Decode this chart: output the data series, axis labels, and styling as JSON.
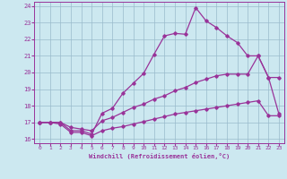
{
  "xlabel": "Windchill (Refroidissement éolien,°C)",
  "bg_color": "#cce8f0",
  "line_color": "#993399",
  "grid_color": "#99bbcc",
  "xlim": [
    -0.5,
    23.5
  ],
  "ylim": [
    15.75,
    24.25
  ],
  "yticks": [
    16,
    17,
    18,
    19,
    20,
    21,
    22,
    23,
    24
  ],
  "xticks": [
    0,
    1,
    2,
    3,
    4,
    5,
    6,
    7,
    8,
    9,
    10,
    11,
    12,
    13,
    14,
    15,
    16,
    17,
    18,
    19,
    20,
    21,
    22,
    23
  ],
  "line1_x": [
    0,
    1,
    2,
    3,
    4,
    5,
    6,
    7,
    8,
    9,
    10,
    11,
    12,
    13,
    14,
    15,
    16,
    17,
    18,
    19,
    20,
    21,
    22,
    23
  ],
  "line1_y": [
    17.0,
    17.0,
    17.0,
    16.5,
    16.5,
    16.3,
    17.55,
    17.85,
    18.75,
    19.35,
    19.95,
    21.1,
    22.2,
    22.35,
    22.3,
    23.9,
    23.1,
    22.7,
    22.2,
    21.8,
    21.0,
    21.0,
    19.7,
    17.5
  ],
  "line2_x": [
    0,
    1,
    2,
    3,
    4,
    5,
    6,
    7,
    8,
    9,
    10,
    11,
    12,
    13,
    14,
    15,
    16,
    17,
    18,
    19,
    20,
    21,
    22,
    23
  ],
  "line2_y": [
    17.0,
    17.0,
    17.0,
    16.7,
    16.6,
    16.5,
    17.1,
    17.3,
    17.6,
    17.9,
    18.1,
    18.4,
    18.6,
    18.9,
    19.1,
    19.4,
    19.6,
    19.8,
    19.9,
    19.9,
    19.9,
    21.0,
    19.7,
    19.7
  ],
  "line3_x": [
    0,
    1,
    2,
    3,
    4,
    5,
    6,
    7,
    8,
    9,
    10,
    11,
    12,
    13,
    14,
    15,
    16,
    17,
    18,
    19,
    20,
    21,
    22,
    23
  ],
  "line3_y": [
    17.0,
    17.0,
    16.9,
    16.4,
    16.4,
    16.2,
    16.5,
    16.65,
    16.75,
    16.9,
    17.05,
    17.2,
    17.35,
    17.5,
    17.6,
    17.7,
    17.8,
    17.9,
    18.0,
    18.1,
    18.2,
    18.3,
    17.4,
    17.4
  ]
}
